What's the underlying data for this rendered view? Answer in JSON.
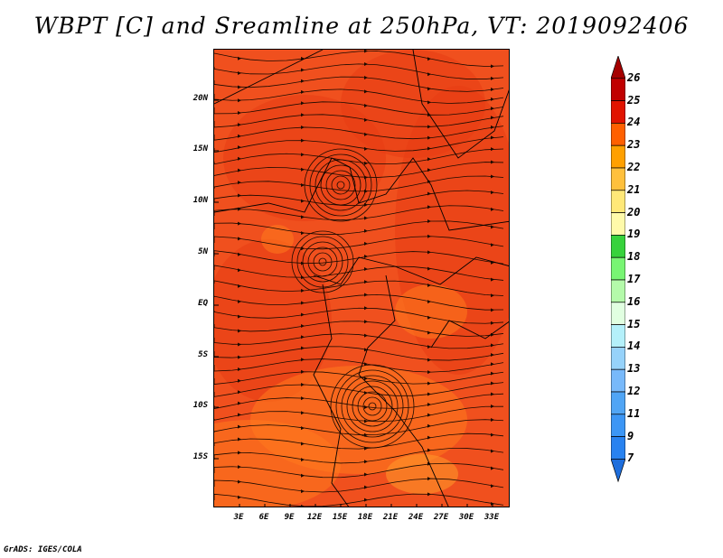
{
  "title": "WBPT [C] and Sreamline at 250hPa, VT: 2019092406",
  "credit": "GrADS: IGES/COLA",
  "lat_labels": [
    "20N",
    "15N",
    "10N",
    "5N",
    "EQ",
    "5S",
    "10S",
    "15S"
  ],
  "lon_labels": [
    "3E",
    "6E",
    "9E",
    "12E",
    "15E",
    "18E",
    "21E",
    "24E",
    "27E",
    "30E",
    "33E"
  ],
  "colorbar": {
    "levels": [
      "7",
      "9",
      "11",
      "12",
      "13",
      "14",
      "15",
      "16",
      "17",
      "18",
      "19",
      "20",
      "21",
      "22",
      "23",
      "24",
      "25",
      "26"
    ],
    "colors": [
      "#1e6edc",
      "#2882f0",
      "#3c96f5",
      "#50a5f5",
      "#78b9fa",
      "#96d2fa",
      "#b4f0fa",
      "#e1ffe1",
      "#b4faaa",
      "#78f573",
      "#37d23c",
      "#fffaaa",
      "#ffe878",
      "#ffc03c",
      "#ffa000",
      "#ff6000",
      "#e11400",
      "#c00000",
      "#a50000"
    ]
  },
  "field_colors": {
    "base": "#f0501e",
    "warm": "#e83c14",
    "cool": "#ff7a1e",
    "cooler": "#ff9a2a"
  }
}
